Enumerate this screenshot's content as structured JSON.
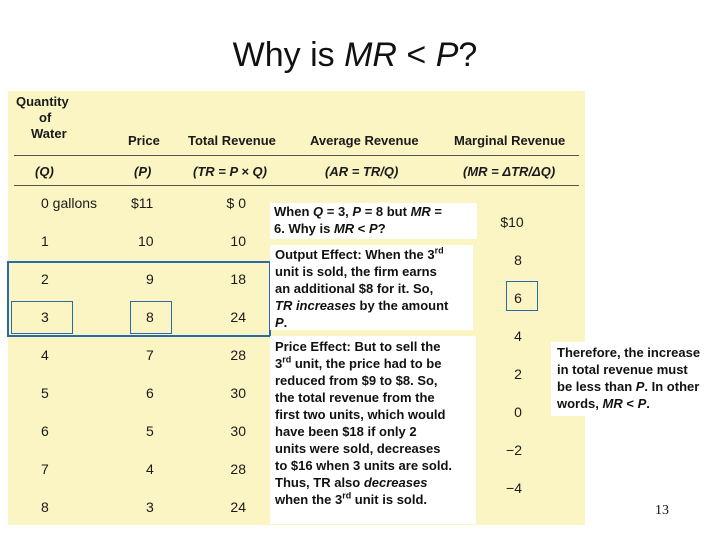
{
  "title": {
    "prefix": "Why is ",
    "mr": "MR",
    "lt": " < ",
    "p": "P",
    "q": "?"
  },
  "headers": {
    "qty": [
      "Quantity",
      "of",
      "Water"
    ],
    "price": "Price",
    "tr": "Total Revenue",
    "ar": "Average Revenue",
    "mr": "Marginal Revenue",
    "f_q": "(Q)",
    "f_p": "(P)",
    "f_tr": "(TR = P × Q)",
    "f_ar": "(AR = TR/Q)",
    "f_mr": "(MR = ΔTR/ΔQ)"
  },
  "rows": [
    {
      "q": "0 gallons",
      "p": "$11",
      "tr": "$ 0"
    },
    {
      "q": "1",
      "p": "10",
      "tr": "10"
    },
    {
      "q": "2",
      "p": "9",
      "tr": "18"
    },
    {
      "q": "3",
      "p": "8",
      "tr": "24"
    },
    {
      "q": "4",
      "p": "7",
      "tr": "28"
    },
    {
      "q": "5",
      "p": "6",
      "tr": "30"
    },
    {
      "q": "6",
      "p": "5",
      "tr": "30"
    },
    {
      "q": "7",
      "p": "4",
      "tr": "28"
    },
    {
      "q": "8",
      "p": "3",
      "tr": "24"
    }
  ],
  "mr_values": [
    "$10",
    "8",
    "6",
    "4",
    "2",
    "0",
    "−2",
    "−4"
  ],
  "notes": {
    "n1_a": "When ",
    "n1_q": "Q",
    "n1_b": " = 3, ",
    "n1_p": "P",
    "n1_c": " = 8 but ",
    "n1_mr": "MR",
    "n1_d": " =",
    "n1_e": "6. Why is ",
    "n1_mr2": "MR",
    "n1_f": " < ",
    "n1_p2": "P",
    "n1_g": "?",
    "n2_a": "Output Effect: When the 3",
    "n2_sup": "rd",
    "n2_b": "unit is sold, the firm earns",
    "n2_c": "an additional  $8 for it. So,",
    "n2_tr": "TR increases",
    "n2_d": " by the amount",
    "n2_p": "P",
    "n2_e": ".",
    "n3_a": "Price Effect: But to sell the",
    "n3_b": "3",
    "n3_sup": "rd",
    "n3_c": " unit, the price had to be",
    "n3_d": "reduced from $9 to $8. So,",
    "n3_e": "the total revenue from the",
    "n3_f": "first two units, which would",
    "n3_g": "have been $18 if only 2",
    "n3_h": "units were sold, decreases",
    "n3_i": "to $16 when 3 units are sold.",
    "n3_j": "Thus, TR also ",
    "n3_dec": "decreases",
    "n3_k": "when the 3",
    "n3_sup2": "rd",
    "n3_l": " unit is sold.",
    "n4_a": "Therefore, the increase",
    "n4_b": "in total revenue must",
    "n4_c": "be less than ",
    "n4_p": "P",
    "n4_d": ". In other",
    "n4_e": "words, ",
    "n4_mr": "MR",
    "n4_f": " < ",
    "n4_p2": "P",
    "n4_g": "."
  },
  "page_number": "13"
}
